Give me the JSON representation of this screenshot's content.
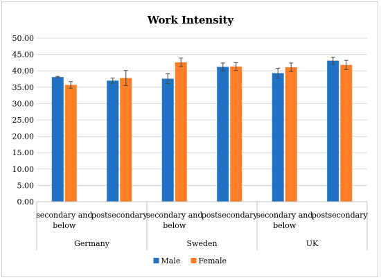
{
  "chart_data": {
    "type": "bar",
    "title": "Work Intensity",
    "xlabel": "",
    "ylabel": "",
    "ylim": [
      0,
      50
    ],
    "yticks": [
      "0.00",
      "5.00",
      "10.00",
      "15.00",
      "20.00",
      "25.00",
      "30.00",
      "35.00",
      "40.00",
      "45.00",
      "50.00"
    ],
    "groups": [
      "Germany",
      "Sweden",
      "UK"
    ],
    "categories": [
      "secondary and below",
      "postsecondary",
      "secondary and below",
      "postsecondary",
      "secondary and below",
      "postsecondary"
    ],
    "series": [
      {
        "name": "Male",
        "color": "#1f72c4",
        "values": [
          38.1,
          37.0,
          37.6,
          41.2,
          39.3,
          43.1
        ],
        "errors": [
          0.2,
          0.8,
          1.5,
          1.2,
          1.5,
          1.1
        ]
      },
      {
        "name": "Female",
        "color": "#ff7f27",
        "values": [
          35.7,
          37.8,
          42.6,
          41.3,
          41.1,
          41.8
        ],
        "errors": [
          1.0,
          2.3,
          1.3,
          1.2,
          1.3,
          1.4
        ]
      }
    ],
    "grid": true,
    "legend": "bottom"
  }
}
